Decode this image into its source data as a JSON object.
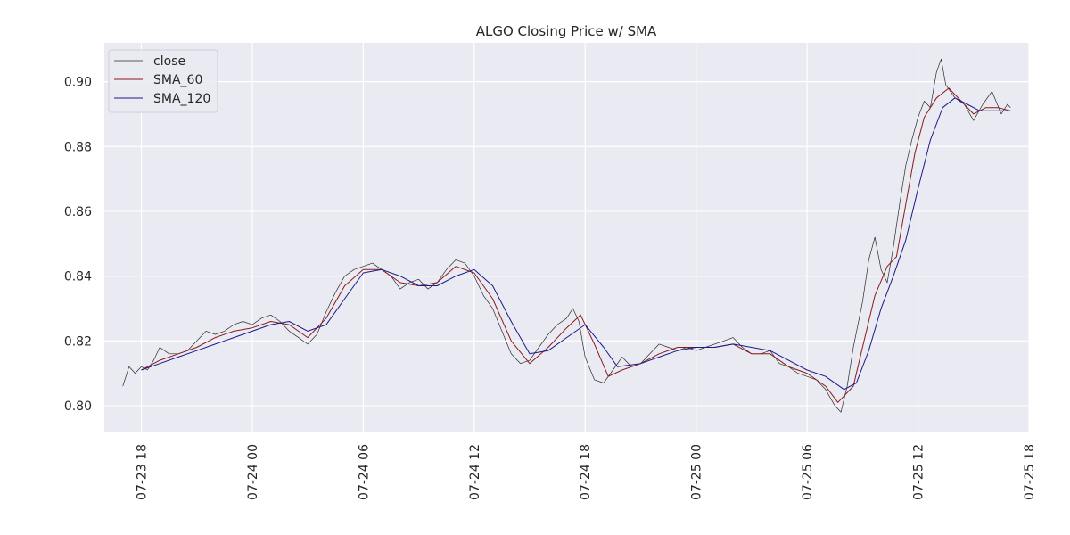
{
  "chart_data": {
    "type": "line",
    "title": "ALGO Closing Price w/ SMA",
    "xlabel": "",
    "ylabel": "",
    "x_range": [
      "2024-07-23 16:00",
      "2024-07-25 18:00"
    ],
    "ylim": [
      0.792,
      0.912
    ],
    "grid": true,
    "legend_placement": "top-left",
    "x_ticks": [
      {
        "t": "2024-07-23 18:00",
        "label": "07-23 18"
      },
      {
        "t": "2024-07-24 00:00",
        "label": "07-24 00"
      },
      {
        "t": "2024-07-24 06:00",
        "label": "07-24 06"
      },
      {
        "t": "2024-07-24 12:00",
        "label": "07-24 12"
      },
      {
        "t": "2024-07-24 18:00",
        "label": "07-24 18"
      },
      {
        "t": "2024-07-25 00:00",
        "label": "07-25 00"
      },
      {
        "t": "2024-07-25 06:00",
        "label": "07-25 06"
      },
      {
        "t": "2024-07-25 12:00",
        "label": "07-25 12"
      },
      {
        "t": "2024-07-25 18:00",
        "label": "07-25 18"
      }
    ],
    "y_ticks": [
      {
        "v": 0.8,
        "label": "0.80"
      },
      {
        "v": 0.82,
        "label": "0.82"
      },
      {
        "v": 0.84,
        "label": "0.84"
      },
      {
        "v": 0.86,
        "label": "0.86"
      },
      {
        "v": 0.88,
        "label": "0.88"
      },
      {
        "v": 0.9,
        "label": "0.90"
      }
    ],
    "series": [
      {
        "name": "close",
        "color": "#2b2b2b",
        "points": [
          [
            "2024-07-23 17:00",
            0.806
          ],
          [
            "2024-07-23 17:20",
            0.812
          ],
          [
            "2024-07-23 17:40",
            0.81
          ],
          [
            "2024-07-23 18:00",
            0.812
          ],
          [
            "2024-07-23 18:20",
            0.811
          ],
          [
            "2024-07-23 18:40",
            0.814
          ],
          [
            "2024-07-23 19:00",
            0.818
          ],
          [
            "2024-07-23 19:30",
            0.816
          ],
          [
            "2024-07-23 20:00",
            0.816
          ],
          [
            "2024-07-23 20:30",
            0.817
          ],
          [
            "2024-07-23 21:00",
            0.82
          ],
          [
            "2024-07-23 21:30",
            0.823
          ],
          [
            "2024-07-23 22:00",
            0.822
          ],
          [
            "2024-07-23 22:30",
            0.823
          ],
          [
            "2024-07-23 23:00",
            0.825
          ],
          [
            "2024-07-23 23:30",
            0.826
          ],
          [
            "2024-07-24 00:00",
            0.825
          ],
          [
            "2024-07-24 00:30",
            0.827
          ],
          [
            "2024-07-24 01:00",
            0.828
          ],
          [
            "2024-07-24 01:30",
            0.826
          ],
          [
            "2024-07-24 02:00",
            0.823
          ],
          [
            "2024-07-24 02:30",
            0.821
          ],
          [
            "2024-07-24 03:00",
            0.819
          ],
          [
            "2024-07-24 03:30",
            0.822
          ],
          [
            "2024-07-24 04:00",
            0.829
          ],
          [
            "2024-07-24 04:30",
            0.835
          ],
          [
            "2024-07-24 05:00",
            0.84
          ],
          [
            "2024-07-24 05:30",
            0.842
          ],
          [
            "2024-07-24 06:00",
            0.843
          ],
          [
            "2024-07-24 06:30",
            0.844
          ],
          [
            "2024-07-24 07:00",
            0.842
          ],
          [
            "2024-07-24 07:30",
            0.84
          ],
          [
            "2024-07-24 08:00",
            0.836
          ],
          [
            "2024-07-24 08:30",
            0.838
          ],
          [
            "2024-07-24 09:00",
            0.839
          ],
          [
            "2024-07-24 09:30",
            0.836
          ],
          [
            "2024-07-24 10:00",
            0.838
          ],
          [
            "2024-07-24 10:30",
            0.842
          ],
          [
            "2024-07-24 11:00",
            0.845
          ],
          [
            "2024-07-24 11:30",
            0.844
          ],
          [
            "2024-07-24 12:00",
            0.84
          ],
          [
            "2024-07-24 12:30",
            0.834
          ],
          [
            "2024-07-24 13:00",
            0.83
          ],
          [
            "2024-07-24 13:30",
            0.823
          ],
          [
            "2024-07-24 14:00",
            0.816
          ],
          [
            "2024-07-24 14:30",
            0.813
          ],
          [
            "2024-07-24 15:00",
            0.814
          ],
          [
            "2024-07-24 15:30",
            0.818
          ],
          [
            "2024-07-24 16:00",
            0.822
          ],
          [
            "2024-07-24 16:30",
            0.825
          ],
          [
            "2024-07-24 17:00",
            0.827
          ],
          [
            "2024-07-24 17:20",
            0.83
          ],
          [
            "2024-07-24 17:40",
            0.826
          ],
          [
            "2024-07-24 18:00",
            0.815
          ],
          [
            "2024-07-24 18:30",
            0.808
          ],
          [
            "2024-07-24 19:00",
            0.807
          ],
          [
            "2024-07-24 19:30",
            0.811
          ],
          [
            "2024-07-24 20:00",
            0.815
          ],
          [
            "2024-07-24 20:30",
            0.812
          ],
          [
            "2024-07-24 21:00",
            0.813
          ],
          [
            "2024-07-24 21:30",
            0.816
          ],
          [
            "2024-07-24 22:00",
            0.819
          ],
          [
            "2024-07-24 22:30",
            0.818
          ],
          [
            "2024-07-24 23:00",
            0.817
          ],
          [
            "2024-07-24 23:30",
            0.818
          ],
          [
            "2024-07-25 00:00",
            0.817
          ],
          [
            "2024-07-25 00:30",
            0.818
          ],
          [
            "2024-07-25 01:00",
            0.819
          ],
          [
            "2024-07-25 01:30",
            0.82
          ],
          [
            "2024-07-25 02:00",
            0.821
          ],
          [
            "2024-07-25 02:30",
            0.818
          ],
          [
            "2024-07-25 03:00",
            0.816
          ],
          [
            "2024-07-25 03:30",
            0.816
          ],
          [
            "2024-07-25 04:00",
            0.817
          ],
          [
            "2024-07-25 04:30",
            0.813
          ],
          [
            "2024-07-25 05:00",
            0.812
          ],
          [
            "2024-07-25 05:30",
            0.81
          ],
          [
            "2024-07-25 06:00",
            0.809
          ],
          [
            "2024-07-25 06:30",
            0.808
          ],
          [
            "2024-07-25 07:00",
            0.805
          ],
          [
            "2024-07-25 07:30",
            0.8
          ],
          [
            "2024-07-25 07:50",
            0.798
          ],
          [
            "2024-07-25 08:10",
            0.806
          ],
          [
            "2024-07-25 08:30",
            0.818
          ],
          [
            "2024-07-25 09:00",
            0.832
          ],
          [
            "2024-07-25 09:20",
            0.845
          ],
          [
            "2024-07-25 09:40",
            0.852
          ],
          [
            "2024-07-25 10:00",
            0.842
          ],
          [
            "2024-07-25 10:20",
            0.838
          ],
          [
            "2024-07-25 10:40",
            0.849
          ],
          [
            "2024-07-25 11:00",
            0.862
          ],
          [
            "2024-07-25 11:20",
            0.874
          ],
          [
            "2024-07-25 11:40",
            0.882
          ],
          [
            "2024-07-25 12:00",
            0.889
          ],
          [
            "2024-07-25 12:20",
            0.894
          ],
          [
            "2024-07-25 12:40",
            0.892
          ],
          [
            "2024-07-25 13:00",
            0.903
          ],
          [
            "2024-07-25 13:15",
            0.907
          ],
          [
            "2024-07-25 13:30",
            0.899
          ],
          [
            "2024-07-25 14:00",
            0.895
          ],
          [
            "2024-07-25 14:30",
            0.893
          ],
          [
            "2024-07-25 15:00",
            0.888
          ],
          [
            "2024-07-25 15:30",
            0.893
          ],
          [
            "2024-07-25 16:00",
            0.897
          ],
          [
            "2024-07-25 16:30",
            0.89
          ],
          [
            "2024-07-25 16:50",
            0.893
          ],
          [
            "2024-07-25 17:00",
            0.892
          ]
        ]
      },
      {
        "name": "SMA_60",
        "color": "#8b1a1a",
        "points": [
          [
            "2024-07-23 18:00",
            0.811
          ],
          [
            "2024-07-23 19:00",
            0.814
          ],
          [
            "2024-07-23 20:00",
            0.816
          ],
          [
            "2024-07-23 21:00",
            0.818
          ],
          [
            "2024-07-23 22:00",
            0.821
          ],
          [
            "2024-07-23 23:00",
            0.823
          ],
          [
            "2024-07-24 00:00",
            0.824
          ],
          [
            "2024-07-24 01:00",
            0.826
          ],
          [
            "2024-07-24 02:00",
            0.825
          ],
          [
            "2024-07-24 03:00",
            0.821
          ],
          [
            "2024-07-24 04:00",
            0.827
          ],
          [
            "2024-07-24 05:00",
            0.837
          ],
          [
            "2024-07-24 06:00",
            0.842
          ],
          [
            "2024-07-24 07:00",
            0.842
          ],
          [
            "2024-07-24 08:00",
            0.838
          ],
          [
            "2024-07-24 09:00",
            0.837
          ],
          [
            "2024-07-24 10:00",
            0.838
          ],
          [
            "2024-07-24 11:00",
            0.843
          ],
          [
            "2024-07-24 12:00",
            0.841
          ],
          [
            "2024-07-24 13:00",
            0.833
          ],
          [
            "2024-07-24 14:00",
            0.82
          ],
          [
            "2024-07-24 15:00",
            0.813
          ],
          [
            "2024-07-24 16:00",
            0.818
          ],
          [
            "2024-07-24 17:00",
            0.824
          ],
          [
            "2024-07-24 17:45",
            0.828
          ],
          [
            "2024-07-24 18:30",
            0.819
          ],
          [
            "2024-07-24 19:15",
            0.809
          ],
          [
            "2024-07-24 20:00",
            0.811
          ],
          [
            "2024-07-24 21:00",
            0.813
          ],
          [
            "2024-07-24 22:00",
            0.816
          ],
          [
            "2024-07-24 23:00",
            0.818
          ],
          [
            "2024-07-25 00:00",
            0.818
          ],
          [
            "2024-07-25 01:00",
            0.818
          ],
          [
            "2024-07-25 02:00",
            0.819
          ],
          [
            "2024-07-25 03:00",
            0.816
          ],
          [
            "2024-07-25 04:00",
            0.816
          ],
          [
            "2024-07-25 05:00",
            0.812
          ],
          [
            "2024-07-25 06:00",
            0.81
          ],
          [
            "2024-07-25 07:00",
            0.806
          ],
          [
            "2024-07-25 07:40",
            0.801
          ],
          [
            "2024-07-25 08:30",
            0.806
          ],
          [
            "2024-07-25 09:00",
            0.818
          ],
          [
            "2024-07-25 09:40",
            0.834
          ],
          [
            "2024-07-25 10:20",
            0.843
          ],
          [
            "2024-07-25 10:50",
            0.846
          ],
          [
            "2024-07-25 11:20",
            0.862
          ],
          [
            "2024-07-25 11:50",
            0.878
          ],
          [
            "2024-07-25 12:20",
            0.889
          ],
          [
            "2024-07-25 13:00",
            0.895
          ],
          [
            "2024-07-25 13:40",
            0.898
          ],
          [
            "2024-07-25 14:20",
            0.894
          ],
          [
            "2024-07-25 15:00",
            0.89
          ],
          [
            "2024-07-25 15:40",
            0.892
          ],
          [
            "2024-07-25 16:20",
            0.892
          ],
          [
            "2024-07-25 17:00",
            0.891
          ]
        ]
      },
      {
        "name": "SMA_120",
        "color": "#1a1a8b",
        "points": [
          [
            "2024-07-23 18:00",
            0.811
          ],
          [
            "2024-07-23 19:00",
            0.813
          ],
          [
            "2024-07-23 20:00",
            0.815
          ],
          [
            "2024-07-23 21:00",
            0.817
          ],
          [
            "2024-07-23 22:00",
            0.819
          ],
          [
            "2024-07-23 23:00",
            0.821
          ],
          [
            "2024-07-24 00:00",
            0.823
          ],
          [
            "2024-07-24 01:00",
            0.825
          ],
          [
            "2024-07-24 02:00",
            0.826
          ],
          [
            "2024-07-24 03:00",
            0.823
          ],
          [
            "2024-07-24 04:00",
            0.825
          ],
          [
            "2024-07-24 05:00",
            0.833
          ],
          [
            "2024-07-24 06:00",
            0.841
          ],
          [
            "2024-07-24 07:00",
            0.842
          ],
          [
            "2024-07-24 08:00",
            0.84
          ],
          [
            "2024-07-24 09:00",
            0.837
          ],
          [
            "2024-07-24 10:00",
            0.837
          ],
          [
            "2024-07-24 11:00",
            0.84
          ],
          [
            "2024-07-24 12:00",
            0.842
          ],
          [
            "2024-07-24 13:00",
            0.837
          ],
          [
            "2024-07-24 14:00",
            0.826
          ],
          [
            "2024-07-24 15:00",
            0.816
          ],
          [
            "2024-07-24 16:00",
            0.817
          ],
          [
            "2024-07-24 17:00",
            0.821
          ],
          [
            "2024-07-24 18:00",
            0.825
          ],
          [
            "2024-07-24 19:00",
            0.818
          ],
          [
            "2024-07-24 19:45",
            0.812
          ],
          [
            "2024-07-24 21:00",
            0.813
          ],
          [
            "2024-07-24 22:00",
            0.815
          ],
          [
            "2024-07-24 23:00",
            0.817
          ],
          [
            "2024-07-25 00:00",
            0.818
          ],
          [
            "2024-07-25 01:00",
            0.818
          ],
          [
            "2024-07-25 02:00",
            0.819
          ],
          [
            "2024-07-25 03:00",
            0.818
          ],
          [
            "2024-07-25 04:00",
            0.817
          ],
          [
            "2024-07-25 05:00",
            0.814
          ],
          [
            "2024-07-25 06:00",
            0.811
          ],
          [
            "2024-07-25 07:00",
            0.809
          ],
          [
            "2024-07-25 08:00",
            0.805
          ],
          [
            "2024-07-25 08:40",
            0.807
          ],
          [
            "2024-07-25 09:20",
            0.817
          ],
          [
            "2024-07-25 10:00",
            0.83
          ],
          [
            "2024-07-25 10:40",
            0.84
          ],
          [
            "2024-07-25 11:20",
            0.851
          ],
          [
            "2024-07-25 12:00",
            0.867
          ],
          [
            "2024-07-25 12:40",
            0.882
          ],
          [
            "2024-07-25 13:20",
            0.892
          ],
          [
            "2024-07-25 14:00",
            0.895
          ],
          [
            "2024-07-25 14:40",
            0.893
          ],
          [
            "2024-07-25 15:20",
            0.891
          ],
          [
            "2024-07-25 16:00",
            0.891
          ],
          [
            "2024-07-25 17:00",
            0.891
          ]
        ]
      }
    ]
  }
}
